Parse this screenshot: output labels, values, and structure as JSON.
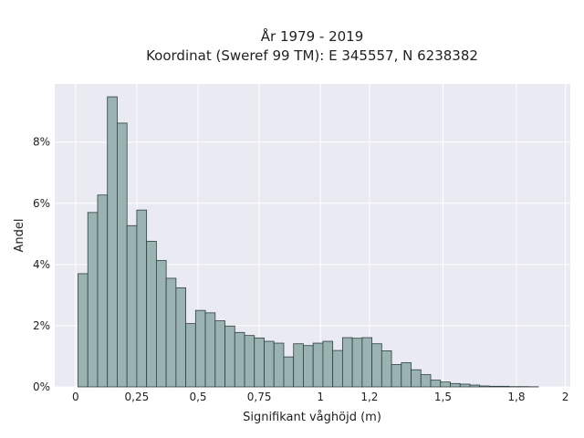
{
  "chart_data": {
    "type": "bar",
    "title_line1": "År 1979 - 2019",
    "title_line2": "Koordinat (Sweref 99 TM): E 345557, N 6238382",
    "xlabel": "Signifikant våghöjd (m)",
    "ylabel": "Andel",
    "xlim": [
      -0.085,
      2.02
    ],
    "ylim": [
      0,
      9.9
    ],
    "x_ticks": [
      0,
      0.25,
      0.5,
      0.75,
      1,
      1.2,
      1.5,
      1.8,
      2
    ],
    "x_tick_labels": [
      "0",
      "0,25",
      "0,5",
      "0,75",
      "1",
      "1,2",
      "1,5",
      "1,8",
      "2"
    ],
    "y_ticks": [
      0,
      2,
      4,
      6,
      8
    ],
    "y_tick_labels": [
      "0%",
      "2%",
      "4%",
      "6%",
      "8%"
    ],
    "grid": true,
    "bin_width": 0.04,
    "bin_start": 0.01,
    "values": [
      3.7,
      5.7,
      6.27,
      9.48,
      8.62,
      5.27,
      5.78,
      4.76,
      4.13,
      3.55,
      3.24,
      2.07,
      2.5,
      2.42,
      2.16,
      1.99,
      1.78,
      1.68,
      1.6,
      1.49,
      1.43,
      0.98,
      1.41,
      1.35,
      1.43,
      1.49,
      1.19,
      1.61,
      1.59,
      1.61,
      1.41,
      1.18,
      0.73,
      0.79,
      0.56,
      0.4,
      0.22,
      0.16,
      0.11,
      0.09,
      0.06,
      0.03,
      0.02,
      0.02,
      0.01,
      0.01,
      0.005
    ],
    "colors": {
      "bar_fill": "#9ab3b2",
      "bar_stroke": "#2f3f3f",
      "plot_bg": "#eaeaf2",
      "grid": "#ffffff"
    }
  }
}
